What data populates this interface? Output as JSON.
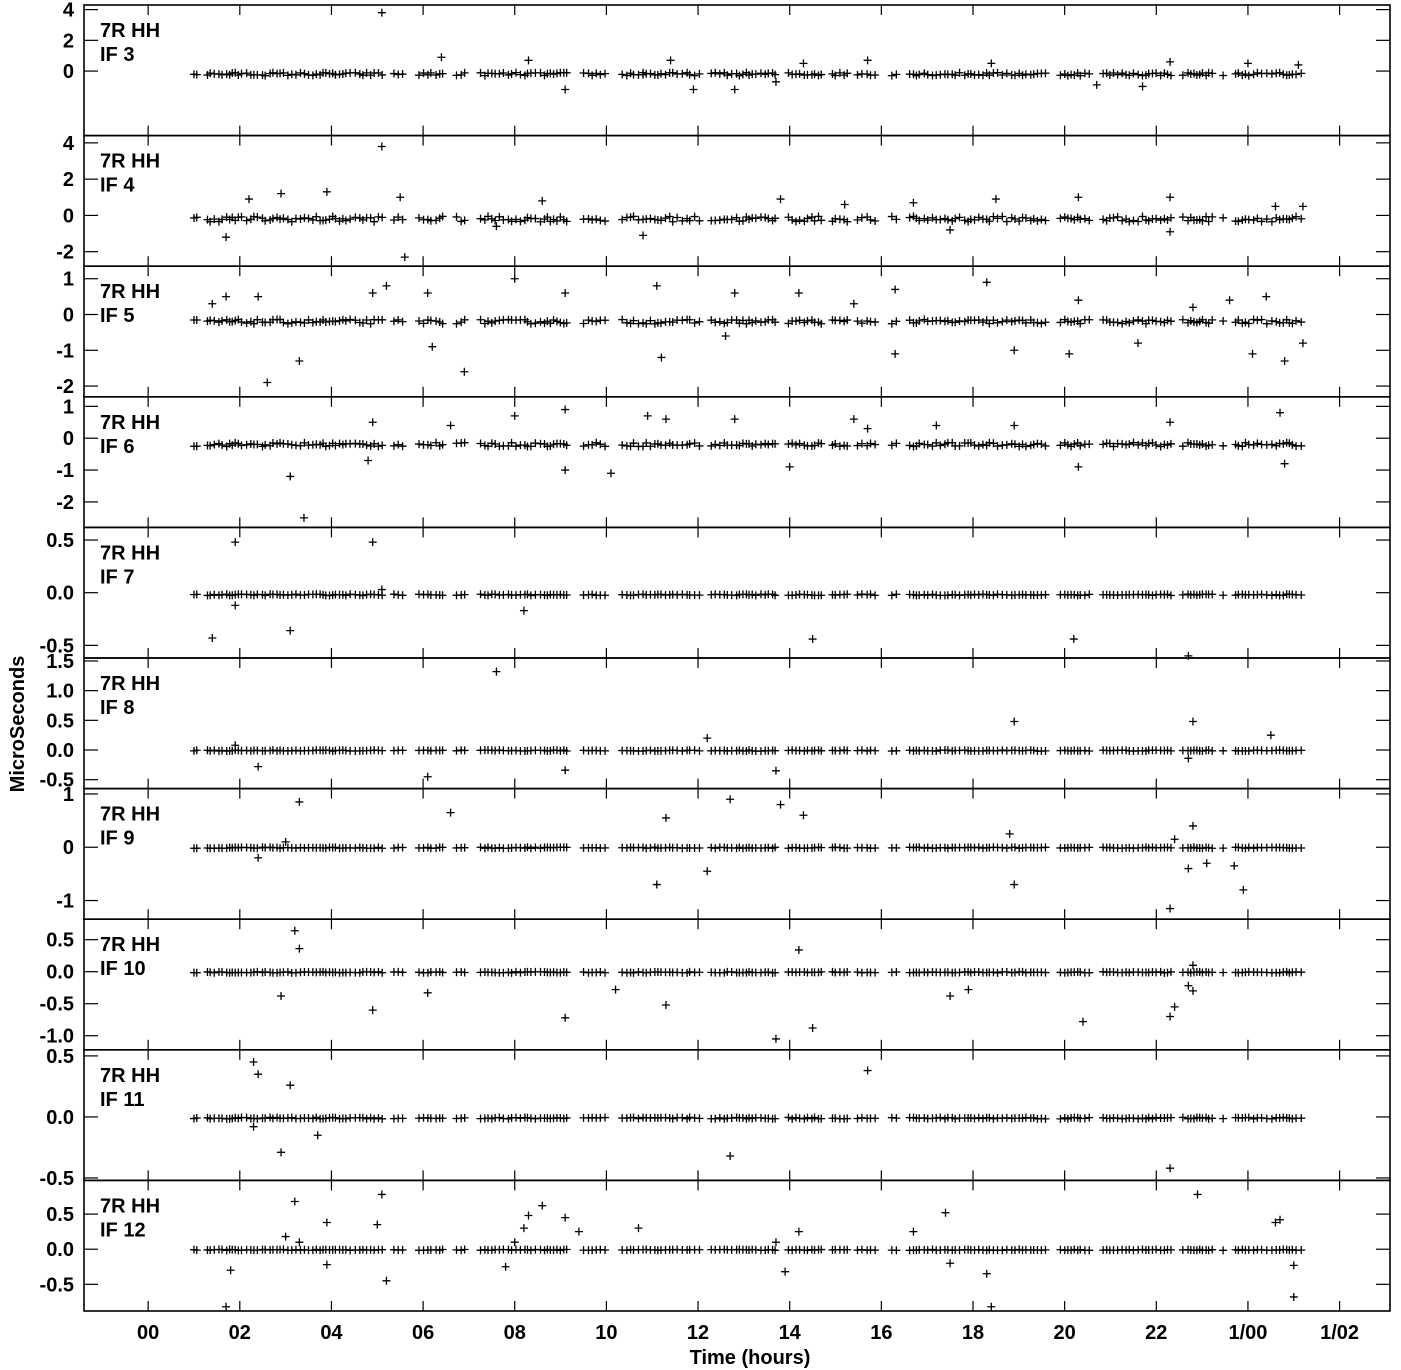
{
  "chart_data": {
    "type": "scatter",
    "ylabel": "MicroSeconds",
    "xlabel": "Time (hours)",
    "x_tick_labels": [
      "00",
      "02",
      "04",
      "06",
      "08",
      "10",
      "12",
      "14",
      "16",
      "18",
      "20",
      "22",
      "1/00",
      "1/02"
    ],
    "x_ticks_hours": [
      0,
      2,
      4,
      6,
      8,
      10,
      12,
      14,
      16,
      18,
      20,
      22,
      24,
      26
    ],
    "xlim_hours": [
      -1.4,
      27.1
    ],
    "data_span_hours": [
      1.0,
      25.2
    ],
    "marker": "+",
    "panels": [
      {
        "label1": "7R HH",
        "label2": "IF 3",
        "ylim": [
          -4.2,
          4.3
        ],
        "yticks": [
          4,
          2,
          0
        ],
        "ytick_labels": [
          "4",
          "2",
          "0"
        ],
        "baseline": -0.2,
        "scatter": 0.1,
        "outliers": [
          [
            5.1,
            3.8
          ],
          [
            6.4,
            0.9
          ],
          [
            8.3,
            0.7
          ],
          [
            9.1,
            -1.2
          ],
          [
            10.8,
            -0.1
          ],
          [
            11.4,
            0.7
          ],
          [
            11.9,
            -1.2
          ],
          [
            12.8,
            -1.2
          ],
          [
            13.7,
            -0.7
          ],
          [
            14.3,
            0.5
          ],
          [
            15.7,
            0.7
          ],
          [
            18.4,
            0.5
          ],
          [
            20.7,
            -0.9
          ],
          [
            21.7,
            -1.0
          ],
          [
            22.3,
            0.6
          ],
          [
            24.0,
            0.5
          ],
          [
            25.1,
            0.4
          ]
        ]
      },
      {
        "label1": "7R HH",
        "label2": "IF 4",
        "ylim": [
          -2.8,
          4.4
        ],
        "yticks": [
          4,
          2,
          0,
          -2
        ],
        "ytick_labels": [
          "4",
          "2",
          "0",
          "-2"
        ],
        "baseline": -0.2,
        "scatter": 0.15,
        "outliers": [
          [
            1.7,
            -1.2
          ],
          [
            2.2,
            0.9
          ],
          [
            2.9,
            1.2
          ],
          [
            3.9,
            1.3
          ],
          [
            5.1,
            3.8
          ],
          [
            5.6,
            -2.3
          ],
          [
            5.5,
            1.0
          ],
          [
            7.6,
            -0.6
          ],
          [
            8.6,
            0.8
          ],
          [
            10.8,
            -1.1
          ],
          [
            13.8,
            0.9
          ],
          [
            15.2,
            0.6
          ],
          [
            16.7,
            0.7
          ],
          [
            17.5,
            -0.8
          ],
          [
            18.5,
            0.9
          ],
          [
            20.3,
            1.0
          ],
          [
            22.3,
            -0.9
          ],
          [
            22.3,
            1.0
          ],
          [
            24.6,
            0.5
          ],
          [
            25.2,
            0.5
          ]
        ]
      },
      {
        "label1": "7R HH",
        "label2": "IF 5",
        "ylim": [
          -2.3,
          1.35
        ],
        "yticks": [
          1,
          0,
          -1,
          -2
        ],
        "ytick_labels": [
          "1",
          "0",
          "-1",
          "-2"
        ],
        "baseline": -0.2,
        "scatter": 0.06,
        "outliers": [
          [
            1.4,
            0.3
          ],
          [
            1.7,
            0.5
          ],
          [
            2.4,
            0.5
          ],
          [
            2.6,
            -1.9
          ],
          [
            3.3,
            -1.3
          ],
          [
            4.9,
            0.6
          ],
          [
            5.2,
            0.8
          ],
          [
            6.1,
            0.6
          ],
          [
            6.2,
            -0.9
          ],
          [
            6.9,
            -1.6
          ],
          [
            8.0,
            1.0
          ],
          [
            9.1,
            0.6
          ],
          [
            11.1,
            0.8
          ],
          [
            11.2,
            -1.2
          ],
          [
            12.6,
            -0.6
          ],
          [
            12.8,
            0.6
          ],
          [
            14.2,
            0.6
          ],
          [
            15.4,
            0.3
          ],
          [
            16.3,
            -1.1
          ],
          [
            16.3,
            0.7
          ],
          [
            18.3,
            0.9
          ],
          [
            18.9,
            -1.0
          ],
          [
            20.1,
            -1.1
          ],
          [
            20.3,
            0.4
          ],
          [
            21.6,
            -0.8
          ],
          [
            22.8,
            0.2
          ],
          [
            23.6,
            0.4
          ],
          [
            24.4,
            0.5
          ],
          [
            24.8,
            -1.3
          ],
          [
            24.1,
            -1.1
          ],
          [
            25.2,
            -0.8
          ]
        ]
      },
      {
        "label1": "7R HH",
        "label2": "IF 6",
        "ylim": [
          -2.8,
          1.3
        ],
        "yticks": [
          1,
          0,
          -1,
          -2
        ],
        "ytick_labels": [
          "1",
          "0",
          "-1",
          "-2"
        ],
        "baseline": -0.2,
        "scatter": 0.06,
        "outliers": [
          [
            3.4,
            -2.5
          ],
          [
            3.1,
            -1.2
          ],
          [
            4.9,
            0.5
          ],
          [
            4.8,
            -0.7
          ],
          [
            6.6,
            0.4
          ],
          [
            8.0,
            0.7
          ],
          [
            9.1,
            0.9
          ],
          [
            9.1,
            -1.0
          ],
          [
            10.1,
            -1.1
          ],
          [
            10.9,
            0.7
          ],
          [
            11.3,
            0.6
          ],
          [
            12.8,
            0.6
          ],
          [
            14.0,
            -0.9
          ],
          [
            15.4,
            0.6
          ],
          [
            15.7,
            0.3
          ],
          [
            17.2,
            0.4
          ],
          [
            18.9,
            0.4
          ],
          [
            20.3,
            -0.9
          ],
          [
            22.3,
            0.5
          ],
          [
            24.7,
            0.8
          ],
          [
            24.8,
            -0.8
          ]
        ]
      },
      {
        "label1": "7R HH",
        "label2": "IF 7",
        "ylim": [
          -0.62,
          0.62
        ],
        "yticks": [
          0.5,
          0.0,
          -0.5
        ],
        "ytick_labels": [
          "0.5",
          "0.0",
          "-0.5"
        ],
        "baseline": -0.02,
        "scatter": 0.006,
        "outliers": [
          [
            1.9,
            0.48
          ],
          [
            1.4,
            -0.43
          ],
          [
            1.9,
            -0.12
          ],
          [
            3.1,
            -0.36
          ],
          [
            4.9,
            0.48
          ],
          [
            5.1,
            0.03
          ],
          [
            8.2,
            -0.17
          ],
          [
            14.5,
            -0.44
          ],
          [
            20.2,
            -0.44
          ],
          [
            22.7,
            -0.6
          ]
        ]
      },
      {
        "label1": "7R HH",
        "label2": "IF 8",
        "ylim": [
          -0.65,
          1.55
        ],
        "yticks": [
          1.5,
          1.0,
          0.5,
          0.0,
          -0.5
        ],
        "ytick_labels": [
          "1.5",
          "1.0",
          "0.5",
          "0.0",
          "-0.5"
        ],
        "baseline": -0.01,
        "scatter": 0.008,
        "outliers": [
          [
            1.9,
            0.08
          ],
          [
            2.4,
            -0.28
          ],
          [
            6.1,
            -0.45
          ],
          [
            7.6,
            1.32
          ],
          [
            9.1,
            -0.34
          ],
          [
            12.2,
            0.2
          ],
          [
            13.7,
            -0.35
          ],
          [
            18.9,
            0.48
          ],
          [
            22.7,
            -0.14
          ],
          [
            22.8,
            0.48
          ],
          [
            24.5,
            0.25
          ]
        ]
      },
      {
        "label1": "7R HH",
        "label2": "IF 9",
        "ylim": [
          -1.35,
          1.1
        ],
        "yticks": [
          1,
          0,
          -1
        ],
        "ytick_labels": [
          "1",
          "0",
          "-1"
        ],
        "baseline": -0.01,
        "scatter": 0.01,
        "outliers": [
          [
            2.4,
            -0.2
          ],
          [
            3.0,
            0.1
          ],
          [
            3.3,
            0.85
          ],
          [
            6.6,
            0.65
          ],
          [
            11.1,
            -0.7
          ],
          [
            11.3,
            0.55
          ],
          [
            12.2,
            -0.45
          ],
          [
            12.7,
            0.9
          ],
          [
            13.8,
            0.8
          ],
          [
            14.3,
            0.6
          ],
          [
            18.8,
            0.25
          ],
          [
            18.9,
            -0.7
          ],
          [
            22.3,
            -1.15
          ],
          [
            22.4,
            0.15
          ],
          [
            22.8,
            0.4
          ],
          [
            22.7,
            -0.4
          ],
          [
            23.1,
            -0.3
          ],
          [
            23.7,
            -0.35
          ],
          [
            23.9,
            -0.8
          ]
        ]
      },
      {
        "label1": "7R HH",
        "label2": "IF 10",
        "ylim": [
          -1.22,
          0.82
        ],
        "yticks": [
          0.5,
          0.0,
          -0.5,
          -1.0
        ],
        "ytick_labels": [
          "0.5",
          "0.0",
          "-0.5",
          "-1.0"
        ],
        "baseline": -0.01,
        "scatter": 0.008,
        "outliers": [
          [
            3.2,
            0.64
          ],
          [
            3.3,
            0.36
          ],
          [
            2.9,
            -0.38
          ],
          [
            4.9,
            -0.6
          ],
          [
            6.1,
            -0.33
          ],
          [
            9.1,
            -0.72
          ],
          [
            10.2,
            -0.28
          ],
          [
            11.3,
            -0.52
          ],
          [
            13.7,
            -1.05
          ],
          [
            14.2,
            0.34
          ],
          [
            14.5,
            -0.88
          ],
          [
            17.5,
            -0.38
          ],
          [
            17.9,
            -0.28
          ],
          [
            20.4,
            -0.78
          ],
          [
            22.3,
            -0.7
          ],
          [
            22.4,
            -0.55
          ],
          [
            22.8,
            -0.3
          ],
          [
            22.8,
            0.1
          ],
          [
            22.7,
            -0.22
          ]
        ]
      },
      {
        "label1": "7R HH",
        "label2": "IF 11",
        "ylim": [
          -0.52,
          0.55
        ],
        "yticks": [
          0.5,
          0.0,
          -0.5
        ],
        "ytick_labels": [
          "0.5",
          "0.0",
          "-0.5"
        ],
        "baseline": -0.01,
        "scatter": 0.006,
        "outliers": [
          [
            2.3,
            0.45
          ],
          [
            2.4,
            0.35
          ],
          [
            2.3,
            -0.08
          ],
          [
            3.1,
            0.26
          ],
          [
            2.9,
            -0.29
          ],
          [
            3.7,
            -0.15
          ],
          [
            12.7,
            -0.32
          ],
          [
            15.7,
            0.38
          ],
          [
            22.3,
            -0.42
          ]
        ]
      },
      {
        "label1": "7R HH",
        "label2": "IF 12",
        "ylim": [
          -0.88,
          0.98
        ],
        "yticks": [
          0.5,
          0.0,
          -0.5
        ],
        "ytick_labels": [
          "0.5",
          "0.0",
          "-0.5"
        ],
        "baseline": -0.01,
        "scatter": 0.006,
        "outliers": [
          [
            1.7,
            -0.82
          ],
          [
            1.8,
            -0.3
          ],
          [
            3.0,
            0.18
          ],
          [
            3.2,
            0.68
          ],
          [
            3.3,
            0.1
          ],
          [
            3.9,
            0.38
          ],
          [
            3.9,
            -0.22
          ],
          [
            5.1,
            0.78
          ],
          [
            5.0,
            0.35
          ],
          [
            5.2,
            -0.45
          ],
          [
            7.8,
            -0.25
          ],
          [
            8.0,
            0.1
          ],
          [
            8.3,
            0.48
          ],
          [
            8.2,
            0.3
          ],
          [
            8.6,
            0.62
          ],
          [
            9.1,
            0.45
          ],
          [
            9.4,
            0.25
          ],
          [
            10.7,
            0.3
          ],
          [
            13.7,
            0.1
          ],
          [
            14.2,
            0.25
          ],
          [
            13.9,
            -0.32
          ],
          [
            16.7,
            0.25
          ],
          [
            17.4,
            0.52
          ],
          [
            17.5,
            -0.2
          ],
          [
            18.3,
            -0.35
          ],
          [
            18.4,
            -0.82
          ],
          [
            22.9,
            0.78
          ],
          [
            24.6,
            0.38
          ],
          [
            24.7,
            0.42
          ],
          [
            25.0,
            -0.23
          ],
          [
            25.0,
            -0.68
          ]
        ]
      }
    ]
  }
}
